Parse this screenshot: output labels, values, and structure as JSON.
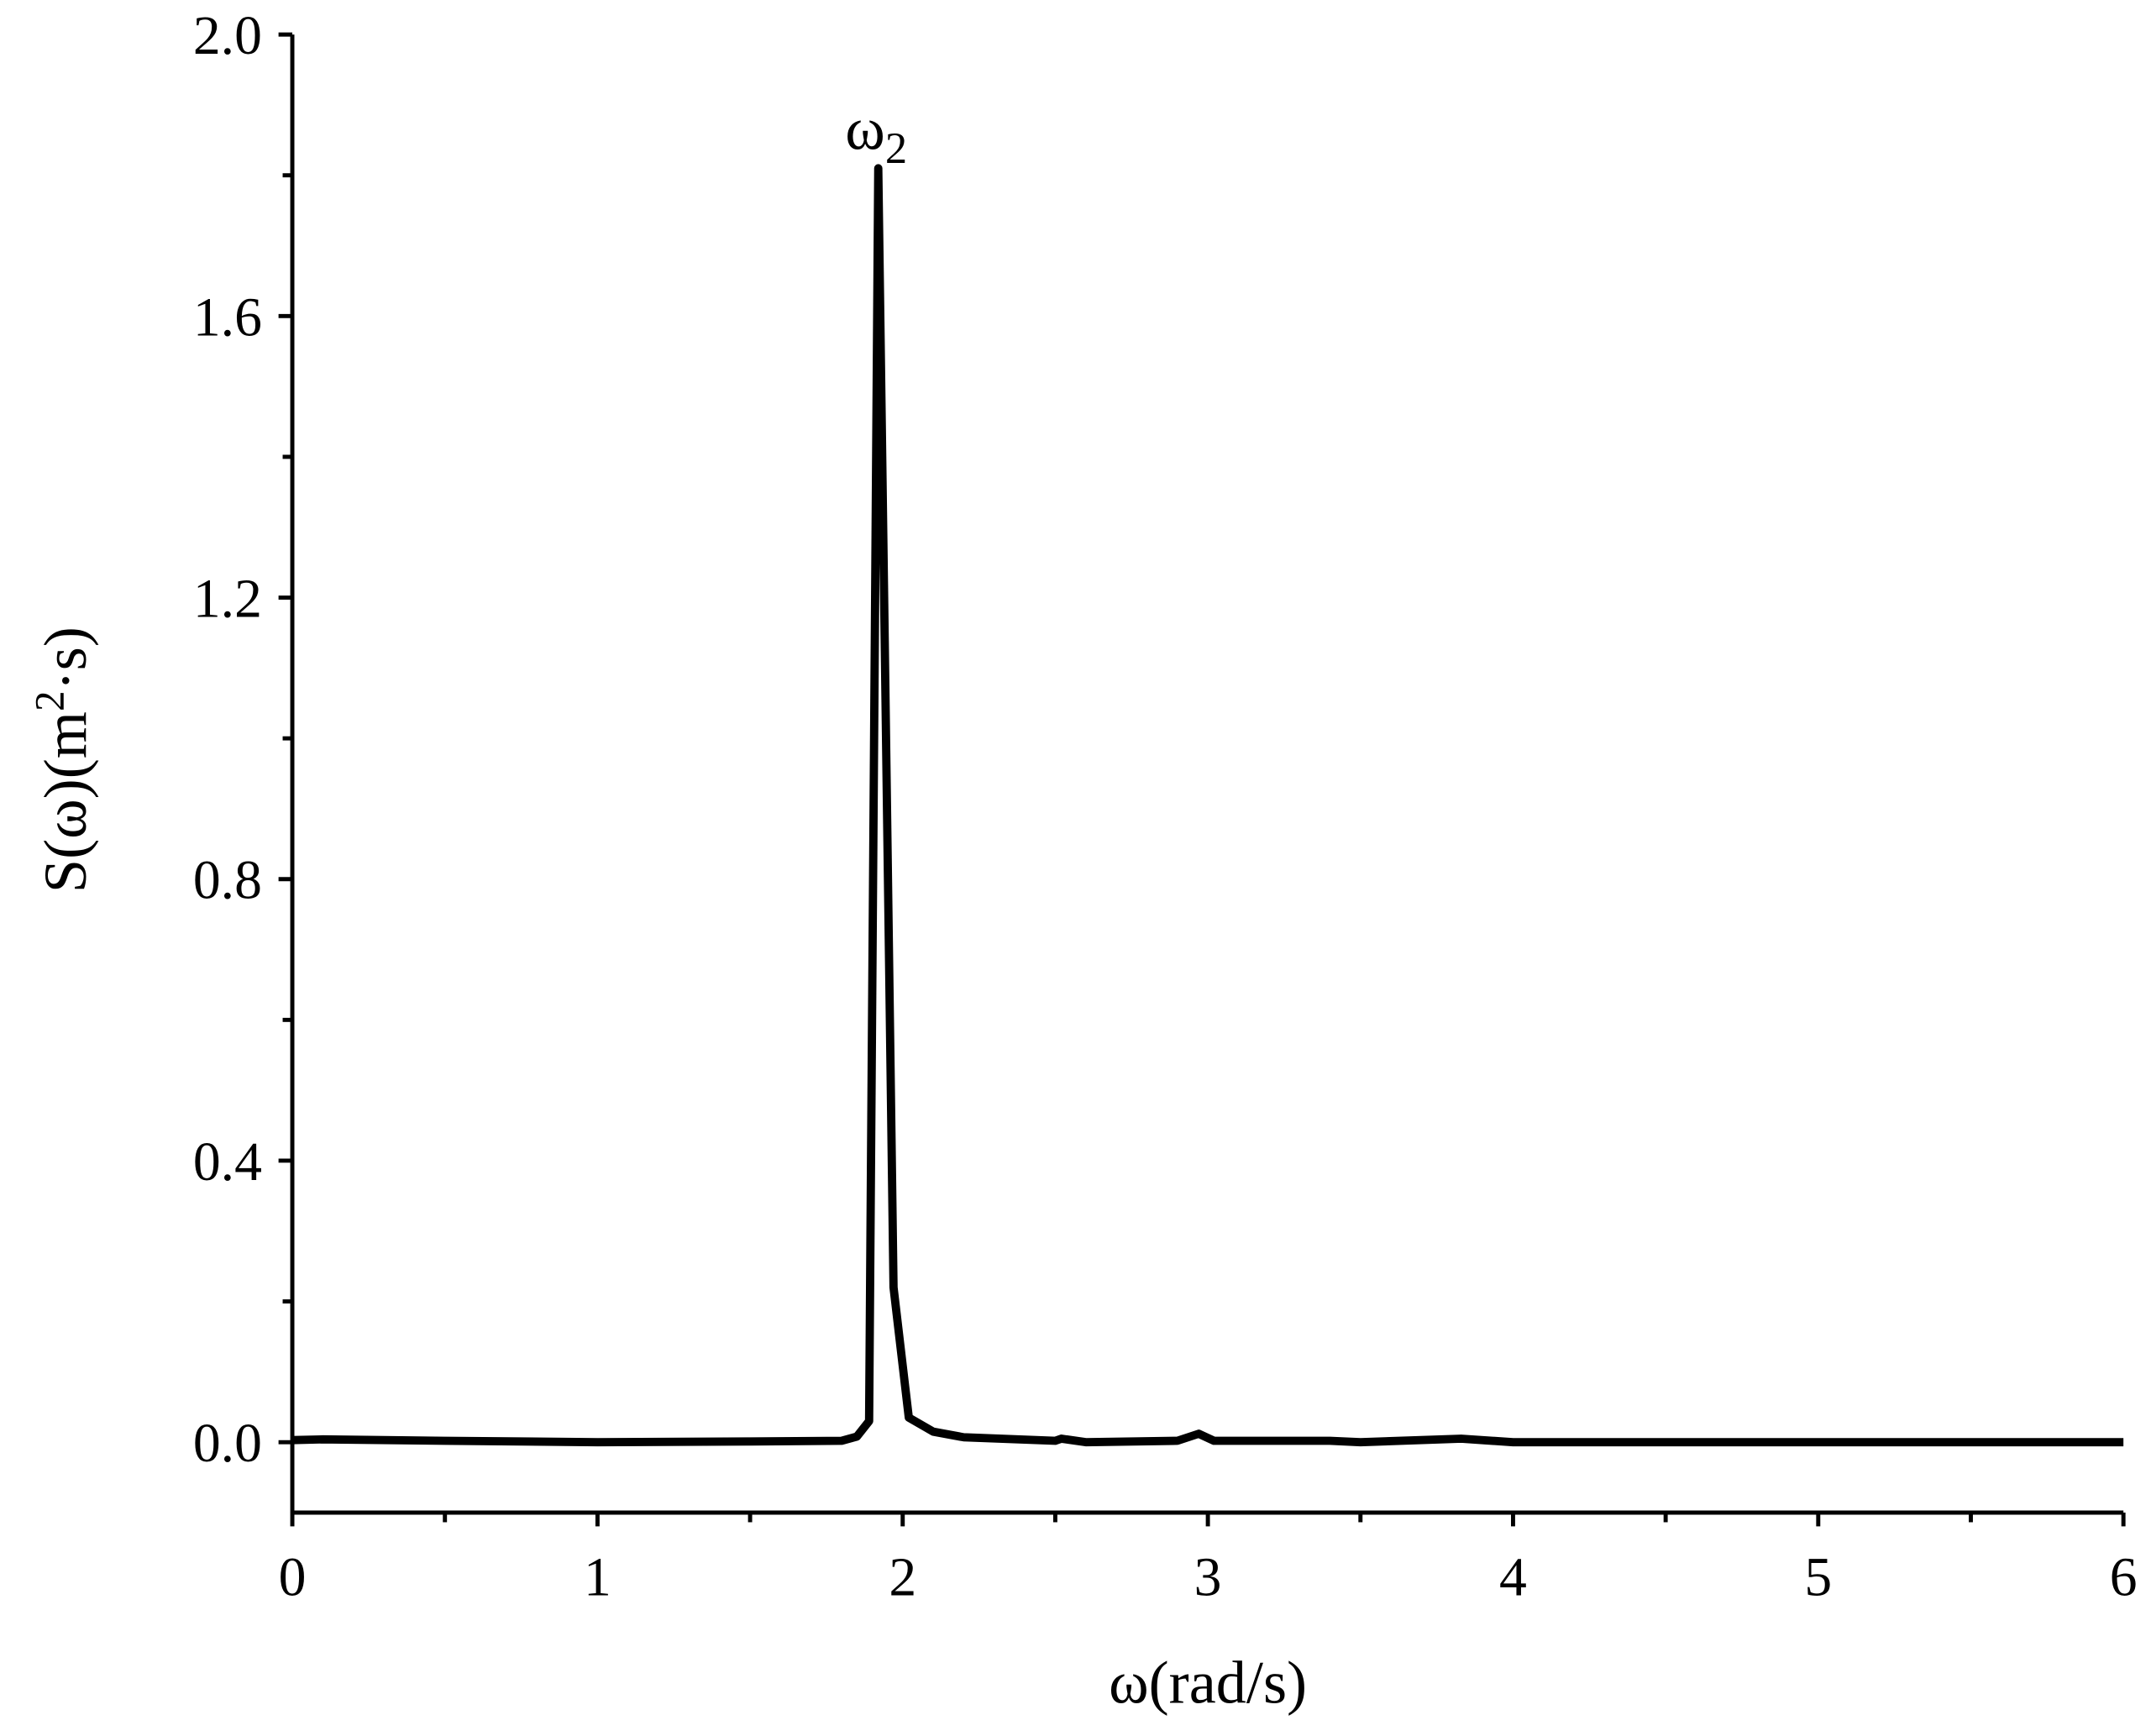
{
  "chart_data": {
    "type": "line",
    "xlabel": "ω(rad/s)",
    "ylabel": {
      "text": "S(ω)(m",
      "sup": "2",
      "tail": "·s)"
    },
    "annotation": {
      "text": "ω",
      "sub": "2"
    },
    "xlim": [
      0,
      6
    ],
    "xticks": [
      0,
      1,
      2,
      3,
      4,
      5,
      6
    ],
    "xminorticks": [
      0.5,
      1.5,
      2.5,
      3.5,
      4.5,
      5.5
    ],
    "ylim": [
      -0.1,
      2.0
    ],
    "yticks": [
      {
        "value": 0,
        "label": "0.0"
      },
      {
        "value": 0.4,
        "label": "0.4"
      },
      {
        "value": 0.8,
        "label": "0.8"
      },
      {
        "value": 1.2,
        "label": "1.2"
      },
      {
        "value": 1.6,
        "label": "1.6"
      },
      {
        "value": 2.0,
        "label": "2.0"
      }
    ],
    "yminorticks": [
      0.2,
      0.6,
      1.0,
      1.4,
      1.8
    ],
    "series": [
      {
        "color": "#000000",
        "x": [
          0,
          0.1,
          0.5,
          1,
          1.5,
          1.8,
          1.85,
          1.89,
          1.92,
          1.97,
          2.02,
          2.1,
          2.2,
          2.5,
          2.52,
          2.6,
          2.9,
          2.97,
          3.02,
          3.4,
          3.5,
          3.83,
          4,
          5,
          6
        ],
        "values": [
          0.003,
          0.004,
          0.002,
          0,
          0.001,
          0.002,
          0.008,
          0.03,
          1.81,
          0.22,
          0.035,
          0.015,
          0.007,
          0.002,
          0.005,
          0,
          0.002,
          0.012,
          0.002,
          0.002,
          0,
          0.005,
          0,
          0,
          0
        ]
      }
    ]
  }
}
